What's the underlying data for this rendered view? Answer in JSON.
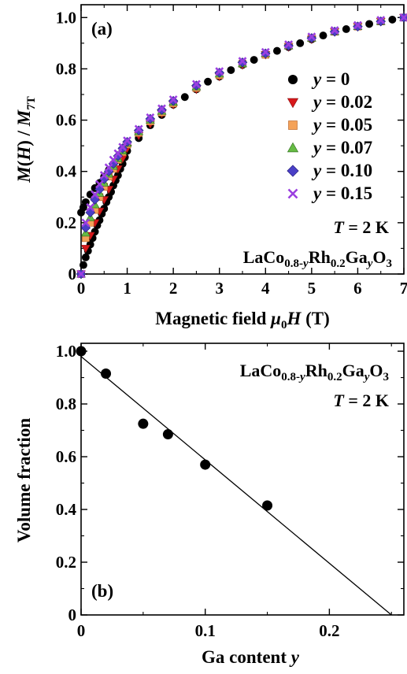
{
  "chart_data": [
    {
      "panel_label": "(a)",
      "type": "scatter",
      "xlabel": "Magnetic field μ0H (T)",
      "ylabel": "M(H) / M7T",
      "xlim": [
        0,
        7
      ],
      "ylim": [
        0,
        1.05
      ],
      "xticks": [
        "0",
        "1",
        "2",
        "3",
        "4",
        "5",
        "6",
        "7"
      ],
      "yticks": [
        "0",
        "0.2",
        "0.4",
        "0.6",
        "0.8",
        "1.0"
      ],
      "legend_position": "right",
      "annotations": [
        "T = 2 K",
        "LaCo0.8-yRh0.2GayO3"
      ],
      "series": [
        {
          "name": "y = 0",
          "marker": "circle",
          "color": "#000000",
          "x": [
            0.0,
            0.05,
            0.1,
            0.15,
            0.2,
            0.25,
            0.3,
            0.35,
            0.4,
            0.45,
            0.5,
            0.55,
            0.6,
            0.65,
            0.7,
            0.75,
            0.8,
            0.85,
            0.9,
            0.95,
            1.0,
            1.25,
            1.5,
            1.75,
            2.0,
            2.25,
            2.5,
            2.75,
            3.0,
            3.25,
            3.5,
            3.75,
            4.0,
            4.25,
            4.5,
            4.75,
            5.0,
            5.25,
            5.5,
            5.75,
            6.0,
            6.25,
            6.5,
            6.75,
            7.0
          ],
          "y": [
            0.0,
            0.035,
            0.065,
            0.09,
            0.115,
            0.14,
            0.165,
            0.19,
            0.21,
            0.235,
            0.255,
            0.28,
            0.3,
            0.32,
            0.345,
            0.365,
            0.385,
            0.41,
            0.43,
            0.455,
            0.48,
            0.53,
            0.58,
            0.62,
            0.66,
            0.69,
            0.72,
            0.75,
            0.77,
            0.795,
            0.815,
            0.835,
            0.855,
            0.87,
            0.885,
            0.9,
            0.915,
            0.93,
            0.945,
            0.955,
            0.965,
            0.975,
            0.985,
            0.992,
            1.0
          ],
          "x_descending": [
            1.0,
            0.9,
            0.8,
            0.7,
            0.6,
            0.5,
            0.4,
            0.3,
            0.2,
            0.1,
            0.05,
            0.0
          ],
          "y_descending": [
            0.505,
            0.48,
            0.455,
            0.43,
            0.405,
            0.38,
            0.355,
            0.335,
            0.31,
            0.28,
            0.26,
            0.24
          ]
        },
        {
          "name": "y = 0.02",
          "marker": "triangle-down",
          "color": "#d7191c",
          "x": [
            0.0,
            0.1,
            0.2,
            0.3,
            0.4,
            0.5,
            0.6,
            0.7,
            0.8,
            0.9,
            1.0,
            1.25,
            1.5,
            1.75,
            2.0,
            2.5,
            3.0,
            3.5,
            4.0,
            4.5,
            5.0,
            5.5,
            6.0,
            6.5,
            7.0
          ],
          "y": [
            0.0,
            0.1,
            0.15,
            0.2,
            0.245,
            0.29,
            0.33,
            0.37,
            0.41,
            0.45,
            0.49,
            0.54,
            0.585,
            0.625,
            0.66,
            0.72,
            0.77,
            0.815,
            0.855,
            0.885,
            0.915,
            0.945,
            0.965,
            0.985,
            1.0
          ]
        },
        {
          "name": "y = 0.05",
          "marker": "square",
          "color": "#f4a259",
          "x": [
            0.0,
            0.1,
            0.2,
            0.3,
            0.4,
            0.5,
            0.6,
            0.7,
            0.8,
            0.9,
            1.0,
            1.25,
            1.5,
            1.75,
            2.0,
            2.5,
            3.0,
            3.5,
            4.0,
            4.5,
            5.0,
            5.5,
            6.0,
            6.5,
            7.0
          ],
          "y": [
            0.0,
            0.14,
            0.2,
            0.25,
            0.3,
            0.34,
            0.38,
            0.41,
            0.445,
            0.475,
            0.505,
            0.55,
            0.595,
            0.63,
            0.665,
            0.725,
            0.775,
            0.82,
            0.855,
            0.89,
            0.92,
            0.945,
            0.965,
            0.985,
            1.0
          ]
        },
        {
          "name": "y = 0.07",
          "marker": "triangle-up",
          "color": "#66bb44",
          "x": [
            0.0,
            0.1,
            0.2,
            0.3,
            0.4,
            0.5,
            0.6,
            0.7,
            0.8,
            0.9,
            1.0,
            1.25,
            1.5,
            1.75,
            2.0,
            2.5,
            3.0,
            3.5,
            4.0,
            4.5,
            5.0,
            5.5,
            6.0,
            6.5,
            7.0
          ],
          "y": [
            0.0,
            0.16,
            0.22,
            0.27,
            0.315,
            0.355,
            0.39,
            0.42,
            0.45,
            0.48,
            0.51,
            0.555,
            0.6,
            0.635,
            0.67,
            0.73,
            0.78,
            0.82,
            0.86,
            0.89,
            0.92,
            0.945,
            0.965,
            0.985,
            1.0
          ]
        },
        {
          "name": "y = 0.10",
          "marker": "diamond",
          "color": "#4a3fc6",
          "x": [
            0.0,
            0.1,
            0.2,
            0.3,
            0.4,
            0.5,
            0.6,
            0.7,
            0.8,
            0.9,
            1.0,
            1.25,
            1.5,
            1.75,
            2.0,
            2.5,
            3.0,
            3.5,
            4.0,
            4.5,
            5.0,
            5.5,
            6.0,
            6.5,
            7.0
          ],
          "y": [
            0.0,
            0.18,
            0.24,
            0.29,
            0.33,
            0.37,
            0.4,
            0.43,
            0.46,
            0.49,
            0.515,
            0.56,
            0.605,
            0.64,
            0.675,
            0.735,
            0.785,
            0.825,
            0.86,
            0.89,
            0.92,
            0.945,
            0.965,
            0.985,
            1.0
          ]
        },
        {
          "name": "y = 0.15",
          "marker": "cross",
          "color": "#9b3fe0",
          "x": [
            0.0,
            0.1,
            0.2,
            0.3,
            0.4,
            0.5,
            0.6,
            0.7,
            0.8,
            0.9,
            1.0,
            1.25,
            1.5,
            1.75,
            2.0,
            2.5,
            3.0,
            3.5,
            4.0,
            4.5,
            5.0,
            5.5,
            6.0,
            6.5,
            7.0
          ],
          "y": [
            0.0,
            0.2,
            0.26,
            0.31,
            0.35,
            0.385,
            0.415,
            0.445,
            0.47,
            0.495,
            0.52,
            0.565,
            0.61,
            0.645,
            0.68,
            0.74,
            0.79,
            0.83,
            0.865,
            0.895,
            0.925,
            0.95,
            0.97,
            0.99,
            1.0
          ]
        }
      ]
    },
    {
      "panel_label": "(b)",
      "type": "scatter",
      "xlabel": "Ga content y",
      "ylabel": "Volume fraction",
      "xlim": [
        0,
        0.26
      ],
      "ylim": [
        0,
        1.03
      ],
      "xticks": [
        "0",
        "0.1",
        "0.2"
      ],
      "yticks": [
        "0",
        "0.2",
        "0.4",
        "0.6",
        "0.8",
        "1.0"
      ],
      "annotations": [
        "LaCo0.8-yRh0.2GayO3",
        "T = 2 K"
      ],
      "points": {
        "x": [
          0.0,
          0.02,
          0.05,
          0.07,
          0.1,
          0.15
        ],
        "y": [
          1.0,
          0.915,
          0.725,
          0.685,
          0.57,
          0.415
        ]
      },
      "fit_line": {
        "x": [
          0.0,
          0.25
        ],
        "y": [
          0.98,
          0.0
        ]
      }
    }
  ]
}
